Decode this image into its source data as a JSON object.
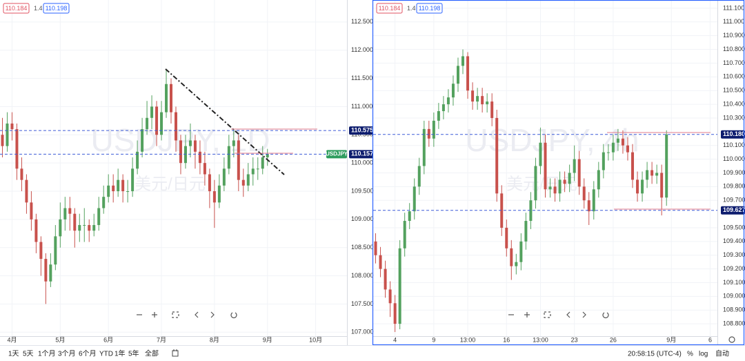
{
  "chart_data": [
    {
      "type": "candlestick",
      "watermark": "USDJPY, 1D",
      "watermark_sub": "美元/日元",
      "header": [
        "110.184",
        "1.4",
        "110.198"
      ],
      "symbol_tag": "USDJPY",
      "up_color": "#53a15e",
      "down_color": "#c8514c",
      "categories": [
        null,
        null,
        "4月",
        null,
        null,
        null,
        null,
        null,
        null,
        null,
        null,
        null,
        "5月",
        null,
        null,
        null,
        null,
        null,
        null,
        null,
        null,
        null,
        "6月",
        null,
        null,
        null,
        null,
        null,
        null,
        null,
        null,
        null,
        null,
        "7月",
        null,
        null,
        null,
        null,
        null,
        null,
        null,
        null,
        null,
        null,
        "8月",
        null,
        null,
        null,
        null,
        null,
        null,
        null,
        null,
        null,
        null,
        "9月",
        null,
        null,
        null,
        null,
        null,
        null,
        null,
        null,
        null,
        "10月",
        null,
        null,
        null,
        null,
        null,
        null
      ],
      "open": [
        110.5,
        110.3,
        110.7,
        110.6,
        109.9,
        109.7,
        109.3,
        109.0,
        108.6,
        108.3,
        107.9,
        108.2,
        108.7,
        109.0,
        109.2,
        109.1,
        108.8,
        108.9,
        108.9,
        108.8,
        108.9,
        109.2,
        109.4,
        109.6,
        109.5,
        109.7,
        109.5,
        109.5,
        109.9,
        110.2,
        110.6,
        110.8,
        111.0,
        110.5,
        110.9,
        111.4,
        110.9,
        110.4,
        110.0,
        110.3,
        110.4,
        110.2,
        110.0,
        109.8,
        109.5,
        109.3,
        109.6,
        109.9,
        110.3,
        110.4,
        109.7,
        109.6,
        109.8,
        109.9,
        109.9,
        110.1,
        null,
        null,
        null,
        null,
        null,
        null,
        null,
        null,
        null,
        null,
        null,
        null,
        null,
        null,
        null,
        null
      ],
      "high": [
        110.8,
        110.9,
        110.9,
        110.7,
        110.1,
        109.8,
        109.5,
        109.1,
        108.7,
        108.4,
        108.4,
        108.9,
        109.3,
        109.4,
        109.4,
        109.2,
        109.1,
        109.2,
        109.0,
        109.1,
        109.4,
        109.6,
        109.8,
        109.8,
        109.9,
        109.8,
        109.7,
        110.1,
        110.4,
        110.8,
        111.1,
        111.2,
        111.1,
        111.1,
        111.67,
        111.5,
        111.0,
        110.5,
        110.5,
        110.7,
        110.5,
        110.4,
        110.2,
        109.9,
        109.7,
        109.8,
        110.1,
        110.5,
        110.6,
        110.5,
        109.9,
        110.0,
        110.1,
        110.1,
        110.3,
        110.25,
        null,
        null,
        null,
        null,
        null,
        null,
        null,
        null,
        null,
        null,
        null,
        null,
        null,
        null,
        null,
        null
      ],
      "low": [
        110.1,
        110.2,
        110.4,
        109.7,
        109.5,
        109.1,
        108.8,
        108.4,
        108.0,
        107.5,
        107.8,
        108.1,
        108.5,
        108.8,
        108.8,
        108.5,
        108.6,
        108.6,
        108.6,
        108.7,
        108.8,
        109.1,
        109.3,
        109.3,
        109.4,
        109.3,
        109.3,
        109.4,
        109.8,
        110.1,
        110.5,
        110.6,
        110.3,
        110.4,
        110.8,
        110.7,
        110.2,
        109.8,
        109.9,
        110.1,
        109.9,
        109.8,
        109.6,
        109.2,
        108.85,
        109.2,
        109.5,
        109.8,
        110.1,
        109.5,
        109.4,
        109.5,
        109.6,
        109.7,
        109.8,
        109.95,
        null,
        null,
        null,
        null,
        null,
        null,
        null,
        null,
        null,
        null,
        null,
        null,
        null,
        null,
        null,
        null
      ],
      "close": [
        110.3,
        110.7,
        110.6,
        109.9,
        109.7,
        109.3,
        109.0,
        108.6,
        108.3,
        107.9,
        108.2,
        108.7,
        109.0,
        109.2,
        109.1,
        108.8,
        108.9,
        108.9,
        108.8,
        108.9,
        109.2,
        109.4,
        109.6,
        109.5,
        109.7,
        109.5,
        109.5,
        109.9,
        110.2,
        110.6,
        110.8,
        111.0,
        110.5,
        110.9,
        111.4,
        110.9,
        110.4,
        110.0,
        110.3,
        110.4,
        110.2,
        110.0,
        109.8,
        109.5,
        109.3,
        109.6,
        109.9,
        110.3,
        110.4,
        109.7,
        109.6,
        109.8,
        109.9,
        109.9,
        110.1,
        110.16,
        null,
        null,
        null,
        null,
        null,
        null,
        null,
        null,
        null,
        null,
        null,
        null,
        null,
        null,
        null,
        null
      ],
      "ylim": [
        106.93,
        112.89
      ],
      "yticks": [
        {
          "value": 107,
          "label": "107.000"
        },
        {
          "value": 107.5,
          "label": "107.500"
        },
        {
          "value": 108,
          "label": "108.000"
        },
        {
          "value": 108.5,
          "label": "108.500"
        },
        {
          "value": 109,
          "label": "109.000"
        },
        {
          "value": 109.5,
          "label": "109.500"
        },
        {
          "value": 110,
          "label": "110.000"
        },
        {
          "value": 110.5,
          "label": "110.500"
        },
        {
          "value": 111,
          "label": "111.000"
        },
        {
          "value": 111.5,
          "label": "111.500"
        },
        {
          "value": 112,
          "label": "112.000"
        },
        {
          "value": 112.5,
          "label": "112.500"
        }
      ],
      "hlines": [
        {
          "value": 110.575,
          "label": "110.575"
        },
        {
          "value": 110.157,
          "label": "110.157"
        }
      ],
      "grid": true
    },
    {
      "type": "candlestick",
      "watermark": "USDJPY, 4h",
      "watermark_sub": "美元/日元",
      "header": [
        "110.184",
        "1.4",
        "110.198"
      ],
      "up_color": "#53a15e",
      "down_color": "#c8514c",
      "categories": [
        null,
        null,
        null,
        null,
        "4",
        null,
        null,
        null,
        null,
        null,
        null,
        null,
        "9",
        null,
        null,
        null,
        null,
        null,
        null,
        "13:00",
        null,
        null,
        null,
        null,
        null,
        null,
        null,
        "16",
        null,
        null,
        null,
        null,
        null,
        null,
        "13:00",
        null,
        null,
        null,
        null,
        null,
        null,
        "23",
        null,
        null,
        null,
        null,
        null,
        null,
        null,
        "26",
        null,
        null,
        null,
        null,
        null,
        null,
        null,
        null,
        null,
        null,
        null,
        "9月",
        null,
        null,
        null,
        null,
        null,
        null,
        null,
        "6",
        null
      ],
      "open": [
        109.4,
        109.3,
        109.2,
        109.05,
        108.95,
        108.8,
        109.35,
        109.55,
        109.62,
        109.8,
        109.95,
        110.22,
        110.15,
        110.28,
        110.35,
        110.4,
        110.45,
        110.55,
        110.68,
        110.75,
        110.5,
        110.42,
        110.46,
        110.4,
        110.42,
        110.3,
        109.75,
        109.5,
        109.35,
        109.22,
        109.25,
        109.4,
        109.55,
        109.7,
        109.95,
        110.12,
        109.78,
        109.8,
        109.75,
        109.85,
        109.82,
        109.9,
        110.0,
        109.8,
        109.7,
        109.62,
        109.78,
        109.92,
        110.05,
        110.05,
        110.12,
        110.15,
        110.1,
        110.05,
        109.85,
        109.75,
        109.85,
        109.92,
        109.88,
        109.9,
        109.72,
        null,
        null,
        null,
        null,
        null,
        null,
        null,
        null,
        null,
        null
      ],
      "high": [
        109.46,
        109.36,
        109.26,
        109.11,
        109.01,
        109.41,
        109.61,
        109.68,
        109.86,
        110.01,
        110.28,
        110.28,
        110.34,
        110.41,
        110.46,
        110.51,
        110.61,
        110.74,
        110.8,
        110.78,
        110.56,
        110.52,
        110.52,
        110.48,
        110.48,
        110.36,
        109.81,
        109.56,
        109.41,
        109.31,
        109.46,
        109.61,
        109.76,
        110.01,
        110.23,
        110.18,
        109.86,
        109.86,
        109.91,
        109.91,
        109.96,
        110.1,
        110.06,
        109.86,
        109.76,
        109.84,
        109.98,
        110.11,
        110.11,
        110.18,
        110.22,
        110.21,
        110.16,
        110.11,
        109.91,
        109.91,
        109.98,
        109.98,
        109.96,
        109.96,
        110.21,
        null,
        null,
        null,
        null,
        null,
        null,
        null,
        null,
        null,
        null
      ],
      "low": [
        109.24,
        109.14,
        108.99,
        108.85,
        108.74,
        108.76,
        109.29,
        109.49,
        109.56,
        109.74,
        109.89,
        110.09,
        110.09,
        110.22,
        110.29,
        110.34,
        110.39,
        110.49,
        110.62,
        110.44,
        110.36,
        110.36,
        110.34,
        110.34,
        110.24,
        109.69,
        109.44,
        109.29,
        109.12,
        109.16,
        109.19,
        109.34,
        109.49,
        109.64,
        109.89,
        109.72,
        109.72,
        109.69,
        109.69,
        109.76,
        109.76,
        109.84,
        109.74,
        109.64,
        109.52,
        109.56,
        109.72,
        109.86,
        109.99,
        109.99,
        110.06,
        110.04,
        109.99,
        109.79,
        109.69,
        109.69,
        109.79,
        109.82,
        109.82,
        109.59,
        109.66,
        null,
        null,
        null,
        null,
        null,
        null,
        null,
        null,
        null,
        null
      ],
      "close": [
        109.3,
        109.2,
        109.05,
        108.95,
        108.8,
        109.35,
        109.55,
        109.62,
        109.8,
        109.95,
        110.22,
        110.15,
        110.28,
        110.35,
        110.4,
        110.45,
        110.55,
        110.68,
        110.75,
        110.5,
        110.42,
        110.46,
        110.4,
        110.42,
        110.3,
        109.75,
        109.5,
        109.35,
        109.22,
        109.25,
        109.4,
        109.55,
        109.7,
        109.95,
        110.12,
        109.78,
        109.8,
        109.75,
        109.85,
        109.82,
        109.9,
        110.0,
        109.8,
        109.7,
        109.62,
        109.78,
        109.92,
        110.05,
        110.05,
        110.12,
        110.15,
        110.1,
        110.05,
        109.85,
        109.75,
        109.85,
        109.92,
        109.88,
        109.9,
        109.72,
        110.18,
        null,
        null,
        null,
        null,
        null,
        null,
        null,
        null,
        null,
        null
      ],
      "ylim": [
        108.71,
        111.16
      ],
      "yticks": [
        {
          "value": 108.8,
          "label": "108.800"
        },
        {
          "value": 108.9,
          "label": "108.900"
        },
        {
          "value": 109,
          "label": "109.000"
        },
        {
          "value": 109.1,
          "label": "109.100"
        },
        {
          "value": 109.2,
          "label": "109.200"
        },
        {
          "value": 109.3,
          "label": "109.300"
        },
        {
          "value": 109.4,
          "label": "109.400"
        },
        {
          "value": 109.5,
          "label": "109.500"
        },
        {
          "value": 109.7,
          "label": "109.700"
        },
        {
          "value": 109.8,
          "label": "109.800"
        },
        {
          "value": 109.9,
          "label": "109.900"
        },
        {
          "value": 110,
          "label": "110.000"
        },
        {
          "value": 110.1,
          "label": "110.100"
        },
        {
          "value": 110.3,
          "label": "110.300"
        },
        {
          "value": 110.4,
          "label": "110.400"
        },
        {
          "value": 110.5,
          "label": "110.500"
        },
        {
          "value": 110.6,
          "label": "110.600"
        },
        {
          "value": 110.7,
          "label": "110.700"
        },
        {
          "value": 110.8,
          "label": "110.800"
        },
        {
          "value": 110.9,
          "label": "110.900"
        },
        {
          "value": 111,
          "label": "111.000"
        },
        {
          "value": 111.1,
          "label": "111.100"
        }
      ],
      "hlines": [
        {
          "value": 110.18,
          "label": "110.180"
        },
        {
          "value": 109.627,
          "label": "109.627"
        }
      ],
      "grid": true
    }
  ],
  "toolbar": {
    "ranges": [
      "1天",
      "5天",
      "1个月",
      "3个月",
      "6个月",
      "YTD",
      "1年",
      "5年",
      "全部"
    ],
    "time": "20:58:15 (UTC-4)",
    "options": [
      "%",
      "log",
      "自动"
    ]
  }
}
